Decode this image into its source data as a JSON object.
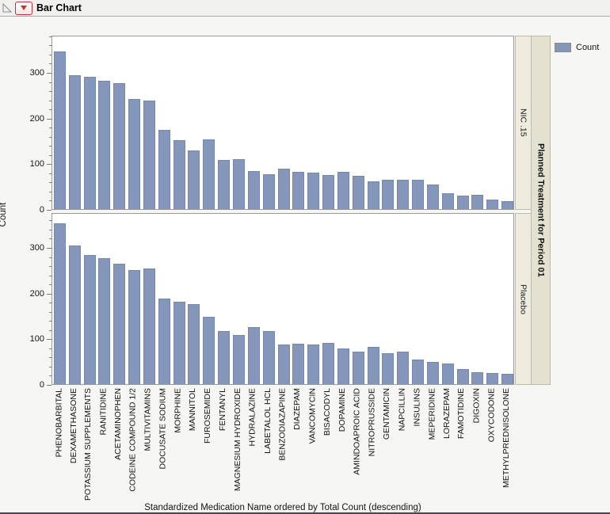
{
  "window": {
    "title": "Bar Chart"
  },
  "header": {
    "disclosure_icon": "collapse-triangle",
    "menu_icon": "red-triangle-menu"
  },
  "legend": {
    "label": "Count",
    "swatch_color": "#8497BA",
    "position": "top-right"
  },
  "group_strip": {
    "title": "Planned Treatment for Period 01",
    "panel_labels": [
      "NIC .15",
      "Placebo"
    ],
    "inner_color": "#EDECDF",
    "outer_color": "#E3E2D1"
  },
  "axes": {
    "y_title": "Count",
    "x_title": "Standardized Medication Name ordered by Total Count (descending)",
    "y_major_ticks": [
      0,
      100,
      200,
      300
    ],
    "y_minor_step": 20
  },
  "chart_data": {
    "type": "bar",
    "title": "Bar Chart",
    "xlabel": "Standardized Medication Name ordered by Total Count (descending)",
    "ylabel": "Count",
    "ylim": [
      0,
      380
    ],
    "yticks": [
      0,
      100,
      200,
      300
    ],
    "grid": false,
    "legend_entries": [
      "Count"
    ],
    "legend_position": "top-right",
    "panel_variable": "Planned Treatment for Period 01",
    "bar_color": "#8497BA",
    "categories": [
      "PHENOBARBITAL",
      "DEXAMETHASONE",
      "POTASSIUM SUPPLEMENTS",
      "RANITIDINE",
      "ACETAMINOPHEN",
      "CODEINE COMPOUND 1/2",
      "MULTIVITAMINS",
      "DOCUSATE SODIUM",
      "MORPHINE",
      "MANNITOL",
      "FUROSEMIDE",
      "FENTANYL",
      "MAGNESIUM HYDROXIDE",
      "HYDRALAZINE",
      "LABETALOL HCL",
      "BENZODIAZAPINE",
      "DIAZEPAM",
      "VANCOMYCIN",
      "BISACODYL",
      "DOPAMINE",
      "AMINDOAPROIC ACID",
      "NITROPRUSSIDE",
      "GENTAMICIN",
      "NAPCILLIN",
      "INSULINS",
      "MEPERIDINE",
      "LORAZEPAM",
      "FAMOTIDINE",
      "DIGOXIN",
      "OXYCODONE",
      "METHYLPREDNISOLONE"
    ],
    "series": [
      {
        "name": "NIC .15",
        "values": [
          345,
          293,
          289,
          281,
          276,
          241,
          237,
          174,
          151,
          129,
          153,
          108,
          110,
          83,
          76,
          89,
          82,
          80,
          75,
          81,
          73,
          60,
          65,
          64,
          65,
          53,
          35,
          29,
          32,
          21,
          17
        ]
      },
      {
        "name": "Placebo",
        "values": [
          352,
          304,
          283,
          275,
          263,
          249,
          253,
          188,
          181,
          175,
          147,
          117,
          107,
          124,
          117,
          87,
          88,
          87,
          90,
          78,
          71,
          81,
          68,
          71,
          53,
          49,
          45,
          33,
          26,
          25,
          23
        ]
      }
    ]
  }
}
